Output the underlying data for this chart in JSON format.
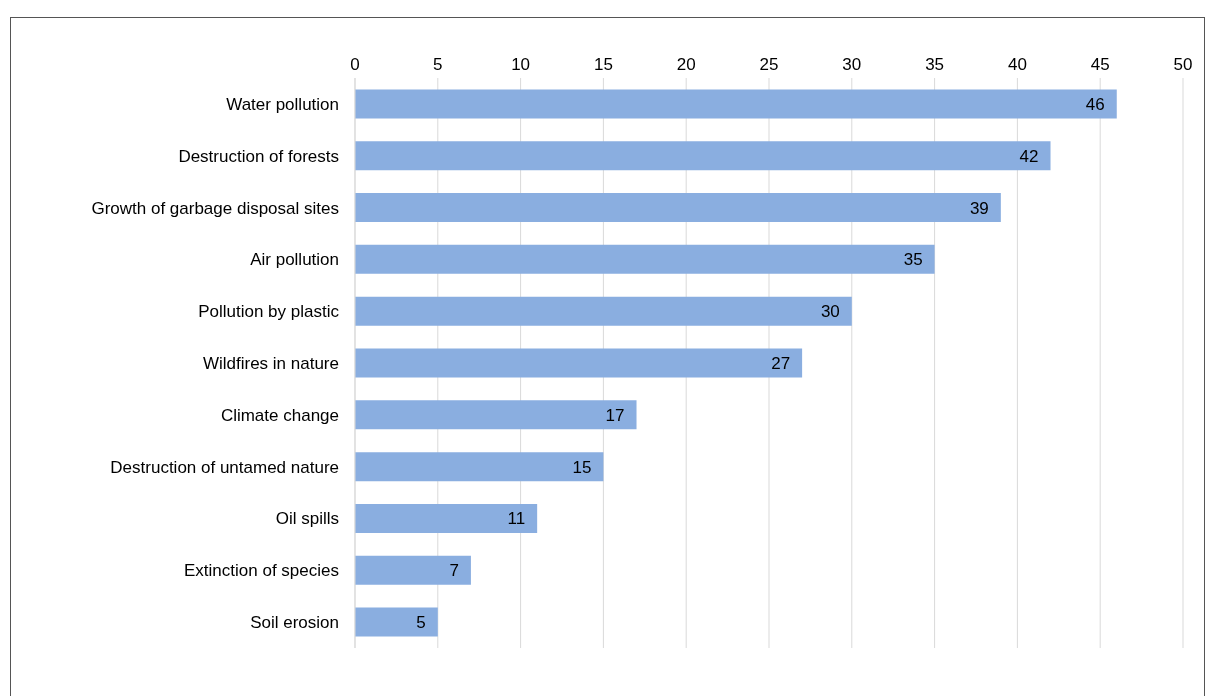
{
  "chart_data": {
    "type": "bar",
    "orientation": "horizontal",
    "categories": [
      "Water pollution",
      "Destruction of forests",
      "Growth of garbage disposal sites",
      "Air pollution",
      "Pollution by plastic",
      "Wildfires in nature",
      "Climate change",
      "Destruction of untamed nature",
      "Oil spills",
      "Extinction of species",
      "Soil erosion"
    ],
    "values": [
      46,
      42,
      39,
      35,
      30,
      27,
      17,
      15,
      11,
      7,
      5
    ],
    "color": "#8aaee0",
    "xlim": [
      0,
      50
    ],
    "xticks": [
      0,
      5,
      10,
      15,
      20,
      25,
      30,
      35,
      40,
      45,
      50
    ],
    "grid": "x",
    "data_labels": true
  }
}
